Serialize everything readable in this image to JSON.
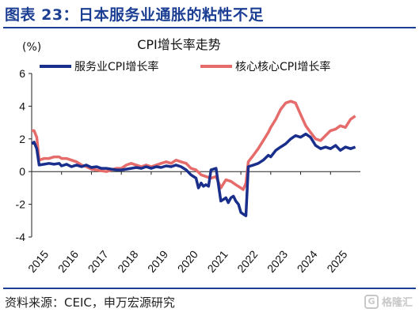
{
  "figure": {
    "title": "图表 23：日本服务业通胀的粘性不足",
    "source": "资料来源：CEIC，申万宏源研究",
    "watermark": "格隆汇",
    "colors": {
      "title": "#1c3f94",
      "rule": "#1c3f94"
    }
  },
  "chart_data": {
    "type": "line",
    "title": "CPI增长率走势",
    "unit_label": "(%)",
    "ylim": [
      -4,
      6
    ],
    "yticks": [
      -4,
      -2,
      0,
      2,
      4,
      6
    ],
    "xlim": [
      2015.0,
      2026.0
    ],
    "xticks": [
      2015,
      2016,
      2017,
      2018,
      2019,
      2020,
      2021,
      2022,
      2023,
      2024,
      2025
    ],
    "x_tick_labels": [
      "2015",
      "2016",
      "2017",
      "2018",
      "2019",
      "2020",
      "2021",
      "2022",
      "2023",
      "2024",
      "2025"
    ],
    "legend_position": "top",
    "grid": false,
    "series": [
      {
        "name": "服务业CPI增长率",
        "color": "#1a2f8c",
        "points": [
          [
            2015.0,
            1.7
          ],
          [
            2015.08,
            1.8
          ],
          [
            2015.17,
            1.4
          ],
          [
            2015.25,
            0.4
          ],
          [
            2015.42,
            0.45
          ],
          [
            2015.58,
            0.5
          ],
          [
            2015.75,
            0.45
          ],
          [
            2015.92,
            0.5
          ],
          [
            2016.0,
            0.35
          ],
          [
            2016.17,
            0.45
          ],
          [
            2016.33,
            0.3
          ],
          [
            2016.5,
            0.4
          ],
          [
            2016.67,
            0.3
          ],
          [
            2016.83,
            0.4
          ],
          [
            2017.0,
            0.25
          ],
          [
            2017.17,
            0.3
          ],
          [
            2017.33,
            0.2
          ],
          [
            2017.5,
            0.2
          ],
          [
            2017.67,
            0.15
          ],
          [
            2017.83,
            0.1
          ],
          [
            2018.0,
            0.1
          ],
          [
            2018.17,
            0.15
          ],
          [
            2018.33,
            0.2
          ],
          [
            2018.5,
            0.25
          ],
          [
            2018.67,
            0.2
          ],
          [
            2018.83,
            0.3
          ],
          [
            2019.0,
            0.2
          ],
          [
            2019.17,
            0.3
          ],
          [
            2019.33,
            0.25
          ],
          [
            2019.5,
            0.35
          ],
          [
            2019.67,
            0.3
          ],
          [
            2019.83,
            0.4
          ],
          [
            2020.0,
            0.3
          ],
          [
            2020.17,
            0.1
          ],
          [
            2020.33,
            -0.2
          ],
          [
            2020.5,
            -0.4
          ],
          [
            2020.58,
            -1.0
          ],
          [
            2020.67,
            -0.7
          ],
          [
            2020.75,
            -0.9
          ],
          [
            2020.83,
            -0.8
          ],
          [
            2020.92,
            -0.9
          ],
          [
            2021.0,
            0.1
          ],
          [
            2021.17,
            0.2
          ],
          [
            2021.33,
            -1.8
          ],
          [
            2021.42,
            -1.7
          ],
          [
            2021.5,
            -1.6
          ],
          [
            2021.58,
            -1.9
          ],
          [
            2021.67,
            -1.6
          ],
          [
            2021.75,
            -1.5
          ],
          [
            2021.83,
            -1.8
          ],
          [
            2021.92,
            -2.0
          ],
          [
            2022.0,
            -2.5
          ],
          [
            2022.08,
            -2.6
          ],
          [
            2022.17,
            -2.7
          ],
          [
            2022.25,
            0.3
          ],
          [
            2022.42,
            0.4
          ],
          [
            2022.58,
            0.5
          ],
          [
            2022.75,
            0.7
          ],
          [
            2022.92,
            1.0
          ],
          [
            2023.0,
            0.9
          ],
          [
            2023.17,
            1.3
          ],
          [
            2023.33,
            1.5
          ],
          [
            2023.5,
            1.7
          ],
          [
            2023.67,
            2.0
          ],
          [
            2023.83,
            2.2
          ],
          [
            2024.0,
            2.1
          ],
          [
            2024.17,
            2.3
          ],
          [
            2024.33,
            2.1
          ],
          [
            2024.5,
            1.6
          ],
          [
            2024.67,
            1.4
          ],
          [
            2024.83,
            1.5
          ],
          [
            2025.0,
            1.4
          ],
          [
            2025.17,
            1.6
          ],
          [
            2025.33,
            1.3
          ],
          [
            2025.5,
            1.5
          ],
          [
            2025.67,
            1.4
          ],
          [
            2025.83,
            1.5
          ]
        ]
      },
      {
        "name": "核心核心CPI增长率",
        "color": "#e66b6b",
        "points": [
          [
            2015.0,
            2.5
          ],
          [
            2015.08,
            2.5
          ],
          [
            2015.17,
            2.1
          ],
          [
            2015.25,
            0.7
          ],
          [
            2015.42,
            0.8
          ],
          [
            2015.58,
            0.8
          ],
          [
            2015.75,
            0.9
          ],
          [
            2015.92,
            0.9
          ],
          [
            2016.0,
            0.8
          ],
          [
            2016.17,
            0.8
          ],
          [
            2016.33,
            0.7
          ],
          [
            2016.5,
            0.6
          ],
          [
            2016.67,
            0.4
          ],
          [
            2016.83,
            0.3
          ],
          [
            2017.0,
            0.15
          ],
          [
            2017.17,
            0.1
          ],
          [
            2017.33,
            0.05
          ],
          [
            2017.5,
            0.0
          ],
          [
            2017.67,
            0.1
          ],
          [
            2017.83,
            0.2
          ],
          [
            2018.0,
            0.2
          ],
          [
            2018.17,
            0.4
          ],
          [
            2018.33,
            0.5
          ],
          [
            2018.5,
            0.4
          ],
          [
            2018.67,
            0.3
          ],
          [
            2018.83,
            0.4
          ],
          [
            2019.0,
            0.3
          ],
          [
            2019.17,
            0.4
          ],
          [
            2019.33,
            0.5
          ],
          [
            2019.5,
            0.6
          ],
          [
            2019.67,
            0.5
          ],
          [
            2019.83,
            0.7
          ],
          [
            2020.0,
            0.6
          ],
          [
            2020.17,
            0.5
          ],
          [
            2020.33,
            0.2
          ],
          [
            2020.5,
            0.1
          ],
          [
            2020.67,
            -0.2
          ],
          [
            2020.83,
            -0.3
          ],
          [
            2021.0,
            -0.4
          ],
          [
            2021.17,
            -0.3
          ],
          [
            2021.33,
            -1.0
          ],
          [
            2021.5,
            -0.5
          ],
          [
            2021.67,
            -0.6
          ],
          [
            2021.83,
            -0.8
          ],
          [
            2022.0,
            -1.0
          ],
          [
            2022.08,
            -1.1
          ],
          [
            2022.17,
            -0.7
          ],
          [
            2022.25,
            0.6
          ],
          [
            2022.42,
            1.0
          ],
          [
            2022.58,
            1.4
          ],
          [
            2022.75,
            1.9
          ],
          [
            2022.92,
            2.4
          ],
          [
            2023.0,
            2.7
          ],
          [
            2023.17,
            3.2
          ],
          [
            2023.33,
            3.8
          ],
          [
            2023.5,
            4.2
          ],
          [
            2023.67,
            4.3
          ],
          [
            2023.83,
            4.2
          ],
          [
            2024.0,
            3.5
          ],
          [
            2024.17,
            2.8
          ],
          [
            2024.33,
            2.4
          ],
          [
            2024.5,
            2.0
          ],
          [
            2024.67,
            1.9
          ],
          [
            2024.83,
            2.2
          ],
          [
            2025.0,
            2.5
          ],
          [
            2025.17,
            2.6
          ],
          [
            2025.33,
            2.8
          ],
          [
            2025.5,
            2.7
          ],
          [
            2025.67,
            3.2
          ],
          [
            2025.83,
            3.4
          ]
        ]
      }
    ]
  }
}
